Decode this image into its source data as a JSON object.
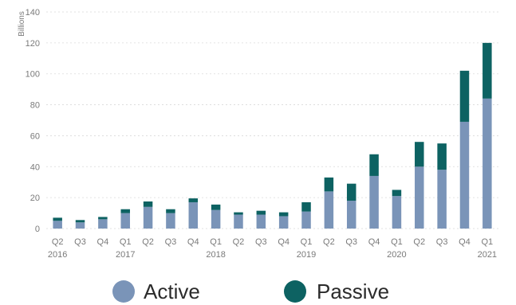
{
  "chart_data": {
    "type": "bar",
    "stacked": true,
    "title": "",
    "xlabel": "",
    "ylabel": "Billions",
    "ylim": [
      0,
      140
    ],
    "yticks": [
      0,
      20,
      40,
      60,
      80,
      100,
      120,
      140
    ],
    "grid": true,
    "legend_position": "bottom",
    "categories": [
      {
        "quarter": "Q2",
        "year": "2016"
      },
      {
        "quarter": "Q3",
        "year": ""
      },
      {
        "quarter": "Q4",
        "year": ""
      },
      {
        "quarter": "Q1",
        "year": "2017"
      },
      {
        "quarter": "Q2",
        "year": ""
      },
      {
        "quarter": "Q3",
        "year": ""
      },
      {
        "quarter": "Q4",
        "year": ""
      },
      {
        "quarter": "Q1",
        "year": "2018"
      },
      {
        "quarter": "Q2",
        "year": ""
      },
      {
        "quarter": "Q3",
        "year": ""
      },
      {
        "quarter": "Q4",
        "year": ""
      },
      {
        "quarter": "Q1",
        "year": "2019"
      },
      {
        "quarter": "Q2",
        "year": ""
      },
      {
        "quarter": "Q3",
        "year": ""
      },
      {
        "quarter": "Q4",
        "year": ""
      },
      {
        "quarter": "Q1",
        "year": "2020"
      },
      {
        "quarter": "Q2",
        "year": ""
      },
      {
        "quarter": "Q3",
        "year": ""
      },
      {
        "quarter": "Q4",
        "year": ""
      },
      {
        "quarter": "Q1",
        "year": "2021"
      }
    ],
    "series": [
      {
        "name": "Active",
        "color": "#7a94b8",
        "values": [
          5,
          4,
          6,
          10,
          14,
          10,
          17,
          12,
          9,
          9,
          8,
          11,
          24,
          18,
          34,
          21,
          40,
          38,
          69,
          84
        ]
      },
      {
        "name": "Passive",
        "color": "#0d6262",
        "values": [
          2,
          1.5,
          1.5,
          2.5,
          3.5,
          2.5,
          2.5,
          3.5,
          1.5,
          2.5,
          2.5,
          6,
          9,
          11,
          14,
          4,
          16,
          17,
          33,
          36
        ]
      }
    ]
  }
}
